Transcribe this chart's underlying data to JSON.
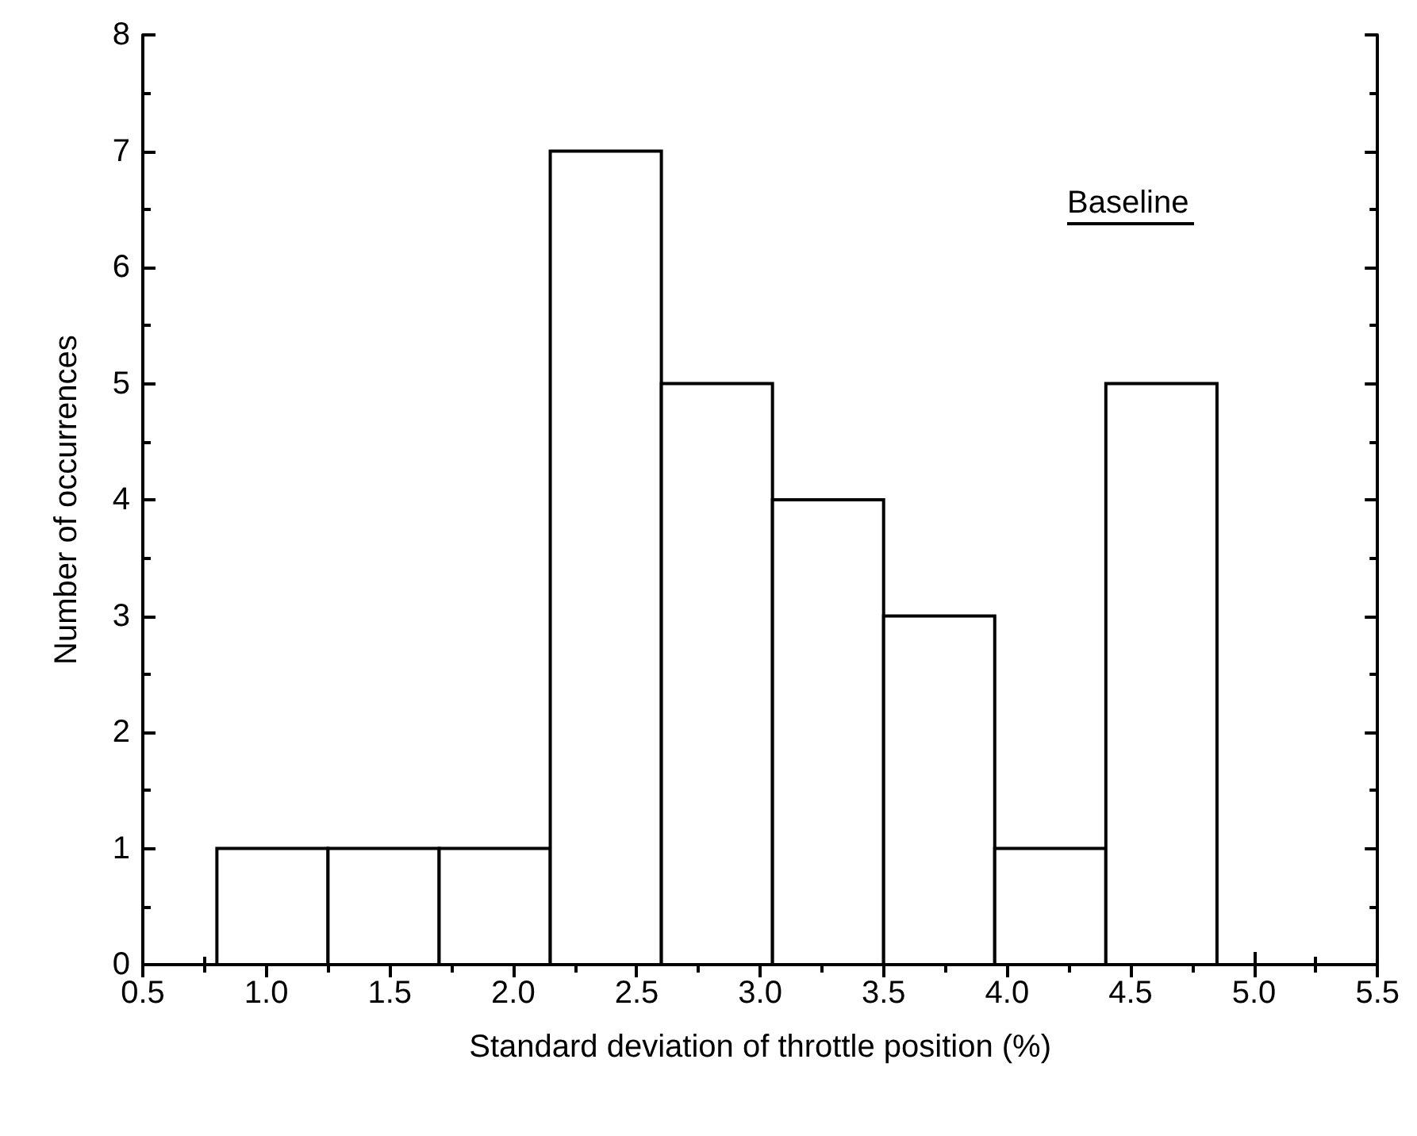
{
  "chart_data": {
    "type": "histogram",
    "xlabel": "Standard deviation of throttle position (%)",
    "ylabel": "Number of occurrences",
    "annotations": [
      "Baseline"
    ],
    "bins": [
      0.8,
      1.25,
      1.7,
      2.15,
      2.6,
      3.05,
      3.5,
      3.95,
      4.4,
      4.85
    ],
    "values": [
      1,
      1,
      1,
      7,
      5,
      4,
      3,
      1,
      5
    ],
    "color": "#ffffff",
    "xlim": [
      0.5,
      5.5
    ],
    "xticks": [
      0.5,
      {
        "value": 1,
        "label": "1.0"
      },
      1.5,
      {
        "value": 2,
        "label": "2.0"
      },
      2.5,
      {
        "value": 3,
        "label": "3.0"
      },
      3.5,
      {
        "value": 4,
        "label": "4.0"
      },
      4.5,
      {
        "value": 5,
        "label": "5.0"
      },
      5.5
    ],
    "ylim": [
      0,
      8
    ],
    "yticks": [
      0,
      1,
      2,
      3,
      4,
      5,
      6,
      7,
      8
    ],
    "grid": false
  }
}
